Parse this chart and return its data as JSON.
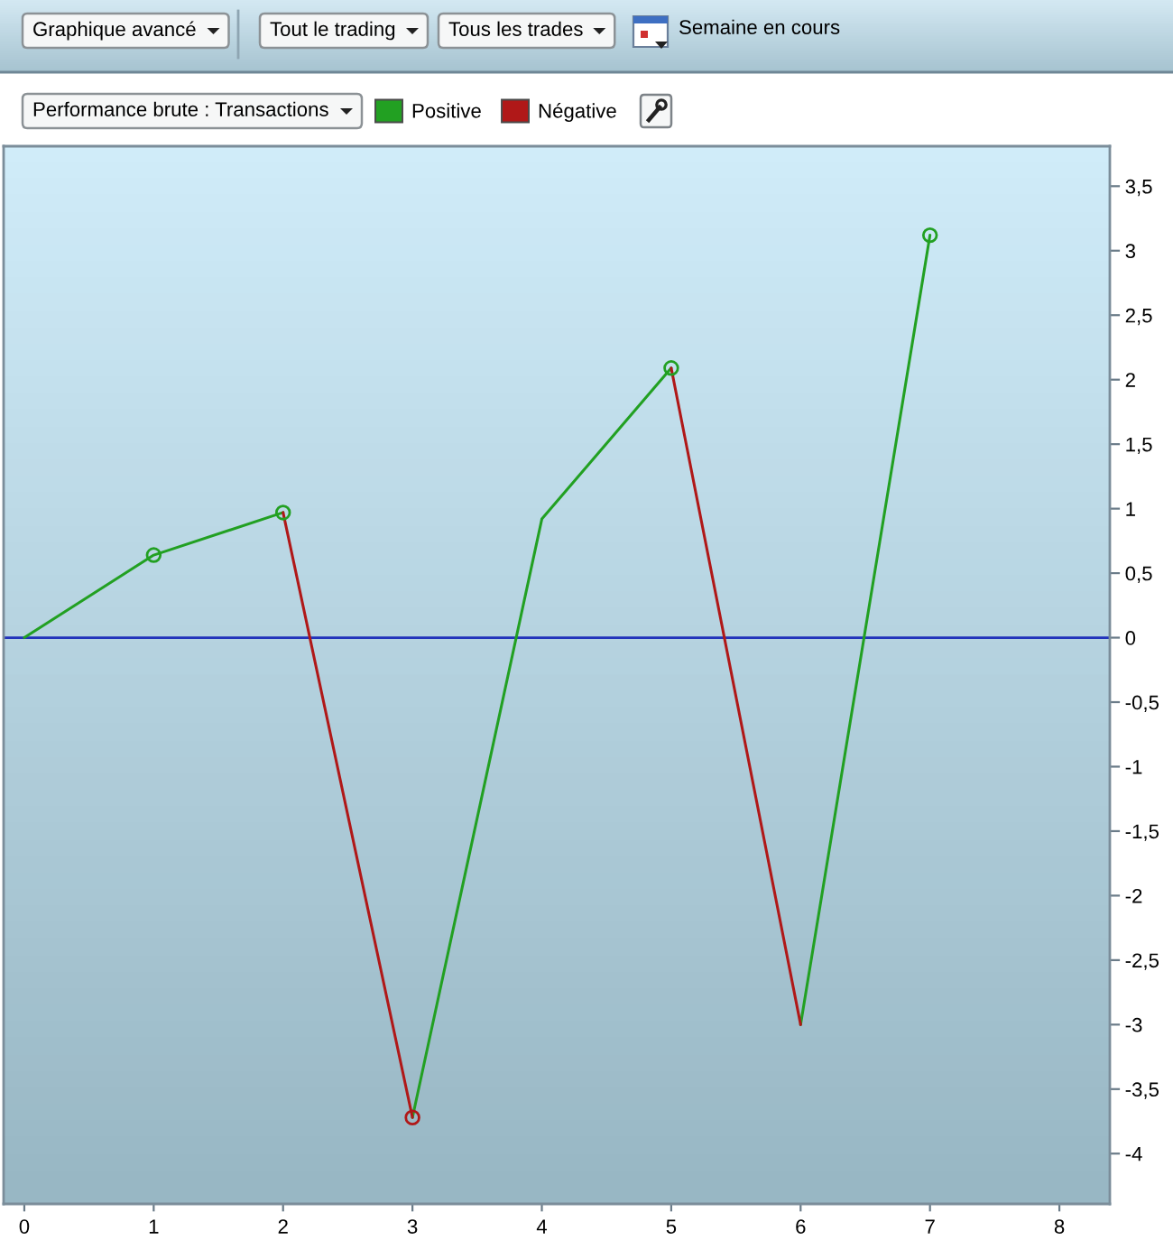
{
  "chart_data": {
    "type": "line",
    "title": "Performance brute : Transactions",
    "annotations": [
      "Graphique avancé",
      "Tout le trading",
      "Tous les trades",
      "Semaine en cours"
    ],
    "series": [
      {
        "name": "Positive",
        "color": "#22a022",
        "x": [
          0,
          1,
          2,
          null,
          3,
          4,
          5,
          null,
          6,
          7
        ],
        "values": [
          0,
          0.64,
          0.97,
          null,
          -3.72,
          0.92,
          2.09,
          null,
          -3.0,
          3.12
        ]
      },
      {
        "name": "Négative",
        "color": "#b01818",
        "x": [
          2,
          3,
          null,
          5,
          6
        ],
        "values": [
          0.97,
          -3.72,
          null,
          2.09,
          -3.0
        ]
      },
      {
        "type": "scatter",
        "marker": "circle",
        "x": [
          1,
          2,
          3,
          5,
          7
        ],
        "values": [
          0.64,
          0.97,
          -3.72,
          2.09,
          3.12
        ],
        "colors": [
          "#22a022",
          "#22a022",
          "#b01818",
          "#22a022",
          "#22a022"
        ]
      }
    ],
    "xlim": [
      -0.16,
      8.39
    ],
    "xticks": [
      0,
      1,
      2,
      3,
      4,
      5,
      6,
      7,
      8
    ],
    "ylim": [
      -4.39,
      3.81
    ],
    "yticks": [
      {
        "value": 3.5,
        "label": "3,5"
      },
      3,
      {
        "value": 2.5,
        "label": "2,5"
      },
      2,
      {
        "value": 1.5,
        "label": "1,5"
      },
      1,
      {
        "value": 0.5,
        "label": "0,5"
      },
      0,
      {
        "value": -0.5,
        "label": "-0,5"
      },
      -1,
      {
        "value": -1.5,
        "label": "-1,5"
      },
      -2,
      {
        "value": -2.5,
        "label": "-2,5"
      },
      -3,
      {
        "value": -3.5,
        "label": "-3,5"
      },
      -4
    ],
    "ref_lines": [
      {
        "axis": "y",
        "value": 0,
        "color": "#2233bb"
      }
    ],
    "legend": "top left",
    "line_style": "solid"
  }
}
